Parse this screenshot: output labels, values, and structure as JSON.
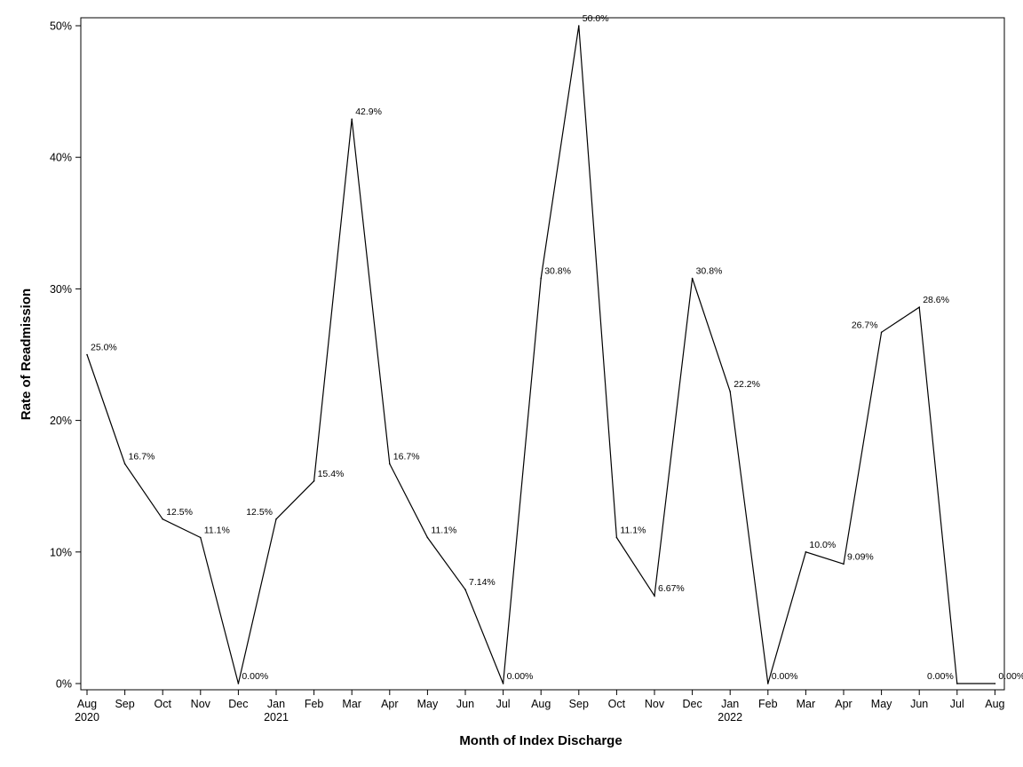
{
  "chart_data": {
    "type": "line",
    "title": "",
    "xlabel": "Month of Index Discharge",
    "ylabel": "Rate of Readmission",
    "x_tick_labels": [
      {
        "month": "Aug",
        "year": "2020"
      },
      {
        "month": "Sep",
        "year": ""
      },
      {
        "month": "Oct",
        "year": ""
      },
      {
        "month": "Nov",
        "year": ""
      },
      {
        "month": "Dec",
        "year": ""
      },
      {
        "month": "Jan",
        "year": "2021"
      },
      {
        "month": "Feb",
        "year": ""
      },
      {
        "month": "Mar",
        "year": ""
      },
      {
        "month": "Apr",
        "year": ""
      },
      {
        "month": "May",
        "year": ""
      },
      {
        "month": "Jun",
        "year": ""
      },
      {
        "month": "Jul",
        "year": ""
      },
      {
        "month": "Aug",
        "year": ""
      },
      {
        "month": "Sep",
        "year": ""
      },
      {
        "month": "Oct",
        "year": ""
      },
      {
        "month": "Nov",
        "year": ""
      },
      {
        "month": "Dec",
        "year": ""
      },
      {
        "month": "Jan",
        "year": "2022"
      },
      {
        "month": "Feb",
        "year": ""
      },
      {
        "month": "Mar",
        "year": ""
      },
      {
        "month": "Apr",
        "year": ""
      },
      {
        "month": "May",
        "year": ""
      },
      {
        "month": "Jun",
        "year": ""
      },
      {
        "month": "Jul",
        "year": ""
      },
      {
        "month": "Aug",
        "year": ""
      }
    ],
    "x": [
      "2020-08",
      "2020-09",
      "2020-10",
      "2020-11",
      "2020-12",
      "2021-01",
      "2021-02",
      "2021-03",
      "2021-04",
      "2021-05",
      "2021-06",
      "2021-07",
      "2021-08",
      "2021-09",
      "2021-10",
      "2021-11",
      "2021-12",
      "2022-01",
      "2022-02",
      "2022-03",
      "2022-04",
      "2022-05",
      "2022-06",
      "2022-07",
      "2022-08"
    ],
    "values": [
      25.0,
      16.7,
      12.5,
      11.1,
      0.0,
      12.5,
      15.4,
      42.9,
      16.7,
      11.1,
      7.14,
      0.0,
      30.8,
      50.0,
      11.1,
      6.67,
      30.8,
      22.2,
      0.0,
      10.0,
      9.09,
      26.7,
      28.6,
      0.0,
      0.0
    ],
    "data_labels": [
      "25.0%",
      "16.7%",
      "12.5%",
      "11.1%",
      "0.00%",
      "12.5%",
      "15.4%",
      "42.9%",
      "16.7%",
      "11.1%",
      "7.14%",
      "0.00%",
      "30.8%",
      "50.0%",
      "11.1%",
      "6.67%",
      "30.8%",
      "22.2%",
      "0.00%",
      "10.0%",
      "9.09%",
      "26.7%",
      "28.6%",
      "0.00%",
      "0.00%"
    ],
    "y_ticks": [
      0,
      10,
      20,
      30,
      40,
      50
    ],
    "y_tick_labels": [
      "0%",
      "10%",
      "20%",
      "30%",
      "40%",
      "50%"
    ],
    "ylim": [
      0,
      50
    ],
    "grid": false,
    "legend": "none",
    "line_color": "#000000"
  }
}
